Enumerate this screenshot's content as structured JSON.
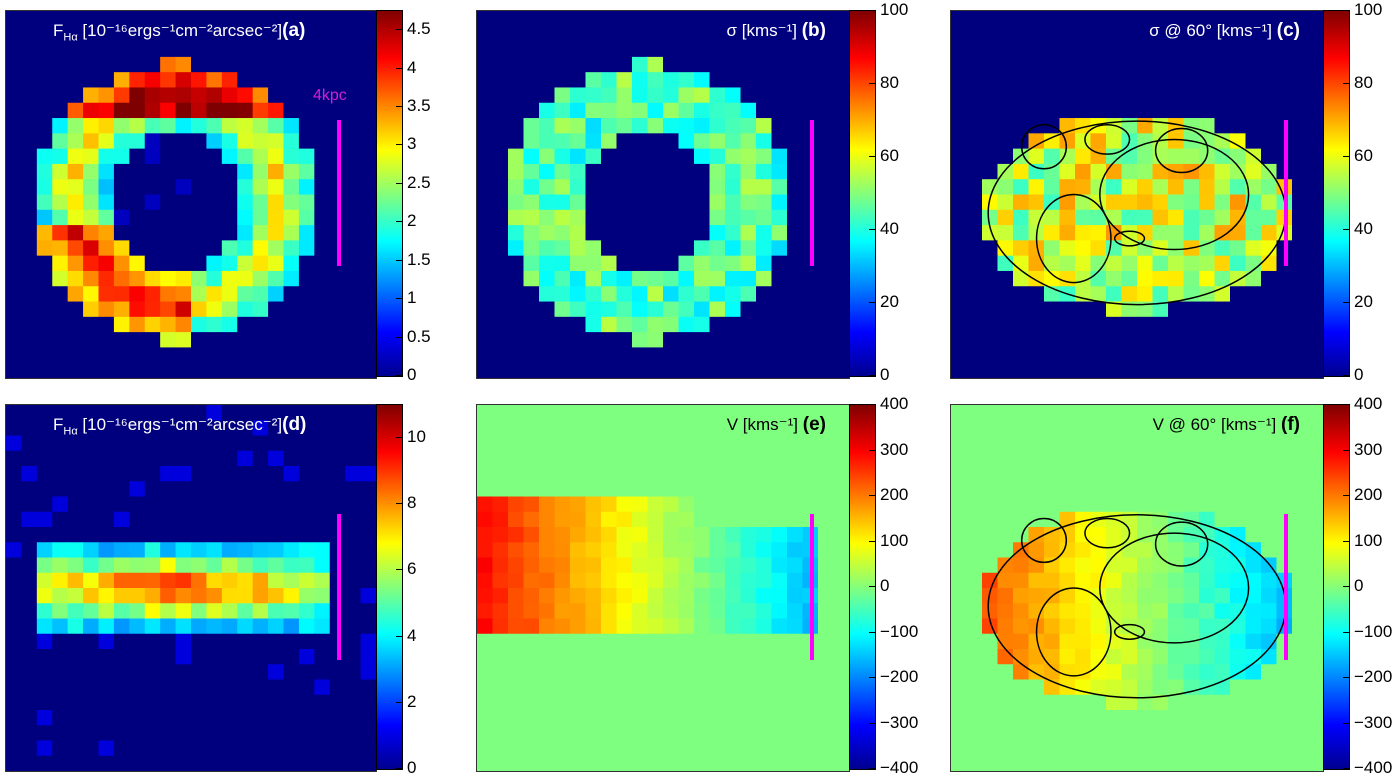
{
  "chart_data": [
    {
      "id": "a",
      "type": "heatmap",
      "title_main": "F",
      "title_sub": "Hα",
      "title_rest": " [10⁻¹⁶ergs⁻¹cm⁻²arcsec⁻²]",
      "tag": "(a)",
      "clim": [
        0,
        4.75
      ],
      "ticks": [
        "0",
        "0.5",
        "1",
        "1.5",
        "2",
        "2.5",
        "3",
        "3.5",
        "4",
        "4.5"
      ],
      "tickvals": [
        0,
        0.5,
        1,
        1.5,
        2,
        2.5,
        3,
        3.5,
        4,
        4.5
      ],
      "scalebar_label": "4kpc",
      "structure": "ring",
      "text_color": "#ffffff"
    },
    {
      "id": "b",
      "type": "heatmap",
      "title_main": "σ [kms⁻¹]",
      "tag": "(b)",
      "clim": [
        0,
        100
      ],
      "ticks": [
        "0",
        "20",
        "40",
        "60",
        "80",
        "100"
      ],
      "tickvals": [
        0,
        20,
        40,
        60,
        80,
        100
      ],
      "structure": "ring",
      "text_color": "#ffffff"
    },
    {
      "id": "c",
      "type": "heatmap",
      "title_main": "σ @ 60° [kms⁻¹]",
      "tag": "(c)",
      "clim": [
        0,
        100
      ],
      "ticks": [
        "0",
        "20",
        "40",
        "60",
        "80",
        "100"
      ],
      "tickvals": [
        0,
        20,
        40,
        60,
        80,
        100
      ],
      "structure": "ellipse",
      "contours": true,
      "text_color": "#ffffff"
    },
    {
      "id": "d",
      "type": "heatmap",
      "title_main": "F",
      "title_sub": "Hα",
      "title_rest": " [10⁻¹⁶ergs⁻¹cm⁻²arcsec⁻²]",
      "tag": "(d)",
      "clim": [
        0,
        11
      ],
      "ticks": [
        "0",
        "2",
        "4",
        "6",
        "8",
        "10"
      ],
      "tickvals": [
        0,
        2,
        4,
        6,
        8,
        10
      ],
      "structure": "bar",
      "text_color": "#ffffff"
    },
    {
      "id": "e",
      "type": "heatmap",
      "title_main": "V [kms⁻¹]",
      "tag": "(e)",
      "clim": [
        -400,
        400
      ],
      "ticks": [
        "−400",
        "−300",
        "−200",
        "−100",
        "0",
        "100",
        "200",
        "300",
        "400"
      ],
      "tickvals": [
        -400,
        -300,
        -200,
        -100,
        0,
        100,
        200,
        300,
        400
      ],
      "structure": "velocity-bar",
      "text_color": "#000000"
    },
    {
      "id": "f",
      "type": "heatmap",
      "title_main": "V @ 60° [kms⁻¹]",
      "tag": "(f)",
      "clim": [
        -400,
        400
      ],
      "ticks": [
        "−400",
        "−300",
        "−200",
        "−100",
        "0",
        "100",
        "200",
        "300",
        "400"
      ],
      "tickvals": [
        -400,
        -300,
        -200,
        -100,
        0,
        100,
        200,
        300,
        400
      ],
      "structure": "velocity-ellipse",
      "contours": true,
      "text_color": "#000000"
    }
  ],
  "colors": {
    "colormap": "jet",
    "scalebar": "#ff00ff"
  }
}
